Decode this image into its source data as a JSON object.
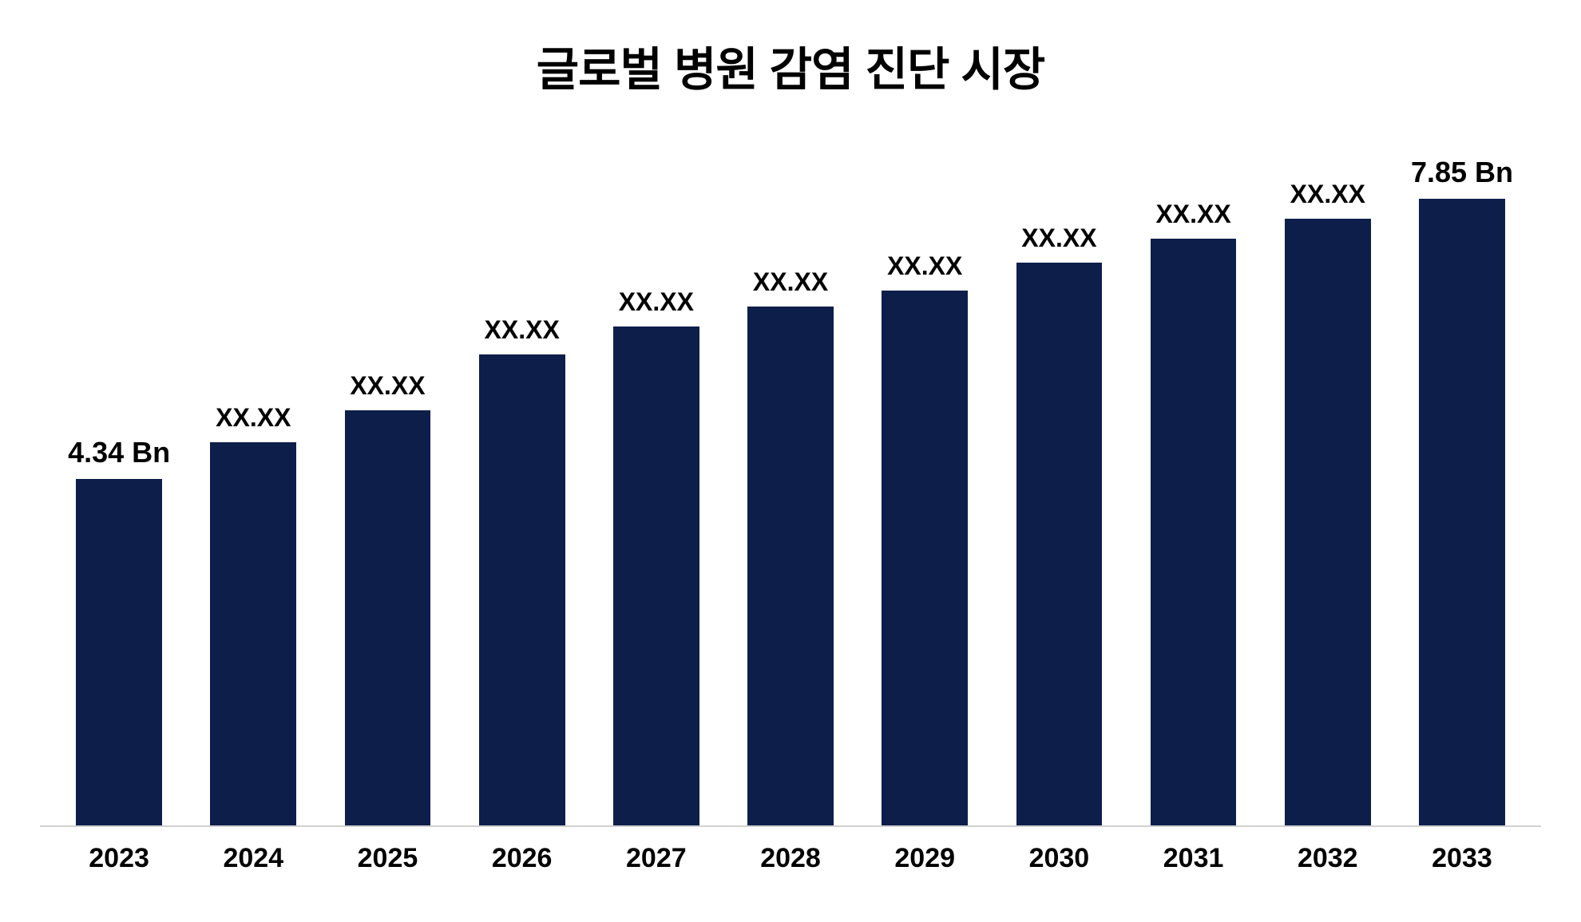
{
  "chart": {
    "type": "bar",
    "title": "글로벌 병원 감염 진단 시장",
    "title_fontsize": 58,
    "title_color": "#000000",
    "background_color": "#ffffff",
    "axis_line_color": "#d0d0d0",
    "bar_color": "#0e1e4b",
    "bar_width_ratio": 0.78,
    "ylim": [
      0,
      8.5
    ],
    "categories": [
      "2023",
      "2024",
      "2025",
      "2026",
      "2027",
      "2028",
      "2029",
      "2030",
      "2031",
      "2032",
      "2033"
    ],
    "values": [
      4.34,
      4.8,
      5.2,
      5.9,
      6.25,
      6.5,
      6.7,
      7.05,
      7.35,
      7.6,
      7.85
    ],
    "value_labels": [
      "4.34 Bn",
      "XX.XX",
      "XX.XX",
      "XX.XX",
      "XX.XX",
      "XX.XX",
      "XX.XX",
      "XX.XX",
      "XX.XX",
      "XX.XX",
      "7.85 Bn"
    ],
    "value_label_fontsize": 32,
    "value_label_fontsize_endpoint": 36,
    "value_label_color": "#000000",
    "xaxis_fontsize": 34,
    "xaxis_color": "#000000",
    "endpoint_indices": [
      0,
      10
    ]
  }
}
